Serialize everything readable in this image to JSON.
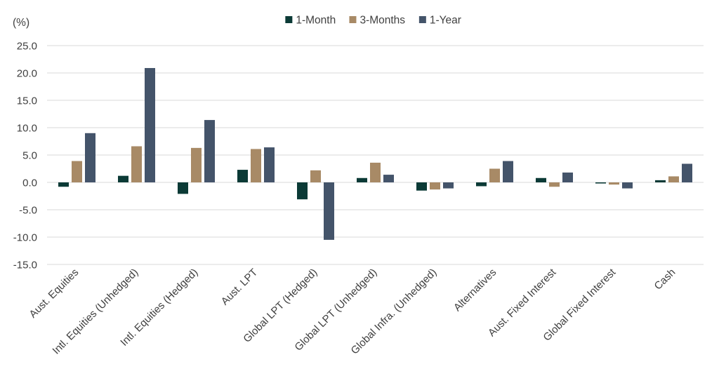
{
  "chart_data": {
    "type": "bar",
    "ylabel": "(%)",
    "ylim": [
      -15,
      25
    ],
    "yticks": [
      "25.0",
      "20.0",
      "15.0",
      "10.0",
      "5.0",
      "0.0",
      "-5.0",
      "-10.0",
      "-15.0"
    ],
    "ytick_values": [
      25,
      20,
      15,
      10,
      5,
      0,
      -5,
      -10,
      -15
    ],
    "grid": true,
    "legend_position": "top",
    "categories": [
      "Aust. Equities",
      "Intl. Equities (Unhedged)",
      "Intl. Equities (Hedged)",
      "Aust. LPT",
      "Global LPT (Hedged)",
      "Global LPT (Unhedged)",
      "Global Infra. (Unhedged)",
      "Alternatives",
      "Aust. Fixed Interest",
      "Global Fixed Interest",
      "Cash"
    ],
    "series": [
      {
        "name": "1-Month",
        "color": "#0b3a36",
        "values": [
          -0.8,
          1.2,
          -2.1,
          2.3,
          -3.1,
          0.8,
          -1.5,
          -0.7,
          0.8,
          -0.2,
          0.4
        ]
      },
      {
        "name": "3-Months",
        "color": "#a88a66",
        "values": [
          3.9,
          6.6,
          6.3,
          6.1,
          2.2,
          3.6,
          -1.3,
          2.5,
          -0.8,
          -0.4,
          1.1
        ]
      },
      {
        "name": "1-Year",
        "color": "#44546a",
        "values": [
          9.0,
          20.9,
          11.4,
          6.4,
          -10.5,
          1.4,
          -1.1,
          3.9,
          1.8,
          -1.1,
          3.4
        ]
      }
    ]
  }
}
